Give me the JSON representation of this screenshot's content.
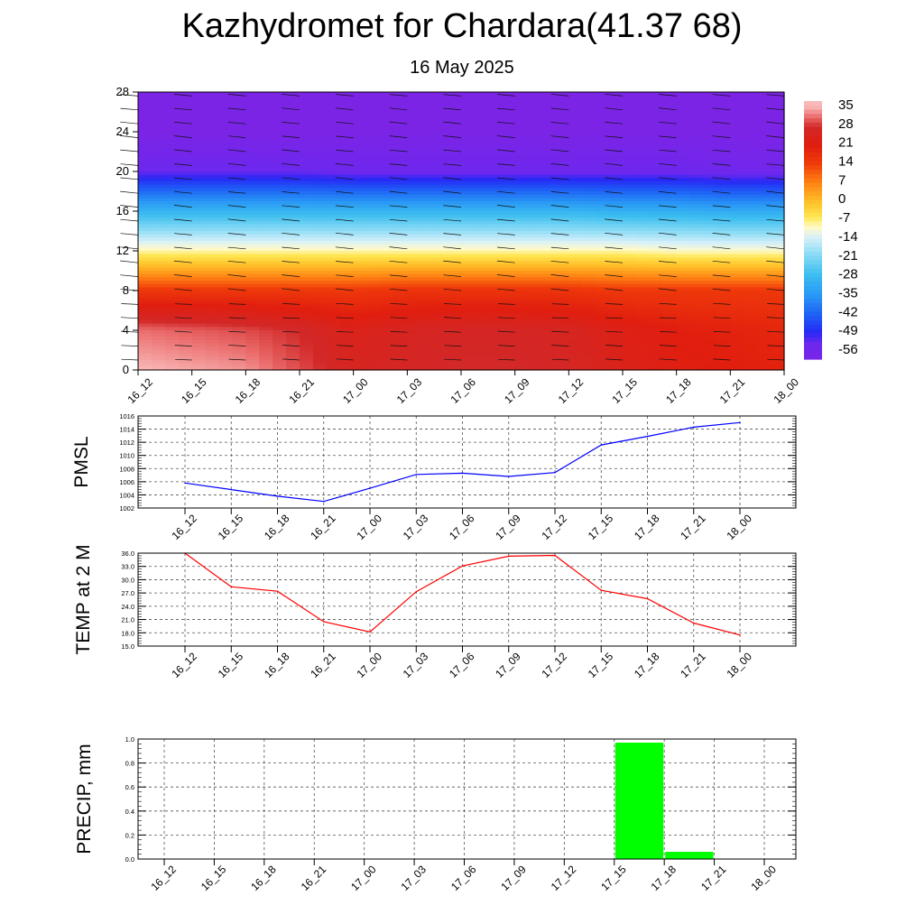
{
  "title": "Kazhydromet for Chardara(41.37 68)",
  "subtitle": "16 May 2025",
  "chart_data": [
    {
      "type": "heatmap",
      "name": "upper-air-temperature",
      "x": [
        "16_12",
        "16_15",
        "16_18",
        "16_21",
        "17_00",
        "17_03",
        "17_06",
        "17_09",
        "17_12",
        "17_15",
        "17_18",
        "17_21",
        "18_00"
      ],
      "yticks": [
        0,
        4,
        8,
        12,
        16,
        20,
        24,
        28
      ],
      "ylim": [
        0,
        28
      ],
      "colorbar_ticks": [
        35,
        28,
        21,
        14,
        7,
        0,
        -7,
        -14,
        -21,
        -28,
        -35,
        -42,
        -49,
        -56
      ],
      "colorbar_range": [
        -60,
        38
      ],
      "z_rows": [
        {
          "y": 0,
          "values": [
            36,
            35,
            34,
            30,
            26,
            27,
            28,
            28,
            27,
            24,
            22,
            21,
            20
          ]
        },
        {
          "y": 4,
          "values": [
            32,
            31,
            30,
            28,
            24,
            26,
            27,
            27,
            26,
            23,
            21,
            20,
            19
          ]
        },
        {
          "y": 8,
          "values": [
            15,
            15,
            15,
            15,
            15,
            16,
            16,
            16,
            16,
            15,
            15,
            15,
            15
          ]
        },
        {
          "y": 12,
          "values": [
            -9,
            -9,
            -9,
            -9,
            -9,
            -9,
            -9,
            -9,
            -9,
            -9,
            -10,
            -10,
            -10
          ]
        },
        {
          "y": 16,
          "values": [
            -30,
            -30,
            -30,
            -30,
            -30,
            -30,
            -30,
            -30,
            -30,
            -31,
            -31,
            -32,
            -32
          ]
        },
        {
          "y": 20,
          "values": [
            -54,
            -54,
            -54,
            -54,
            -55,
            -55,
            -55,
            -55,
            -55,
            -55,
            -55,
            -56,
            -56
          ]
        },
        {
          "y": 24,
          "values": [
            -62,
            -62,
            -62,
            -62,
            -62,
            -62,
            -62,
            -62,
            -62,
            -62,
            -62,
            -62,
            -62
          ]
        },
        {
          "y": 28,
          "values": [
            -62,
            -62,
            -62,
            -62,
            -62,
            -62,
            -62,
            -62,
            -62,
            -62,
            -62,
            -62,
            -62
          ]
        }
      ],
      "wind_barbs": "yes"
    },
    {
      "type": "line",
      "ylabel": "PMSL",
      "x": [
        "16_12",
        "16_15",
        "16_18",
        "16_21",
        "17_00",
        "17_03",
        "17_06",
        "17_09",
        "17_12",
        "17_15",
        "17_18",
        "17_21",
        "18_00"
      ],
      "values": [
        1005.8,
        1004.8,
        1003.8,
        1003.0,
        1005.0,
        1007.1,
        1007.3,
        1006.8,
        1007.4,
        1011.6,
        1012.9,
        1014.3,
        1015.0
      ],
      "ylim": [
        1002,
        1016
      ],
      "yticks": [
        "1002",
        "1004",
        "1006",
        "1008",
        "1010",
        "1012",
        "1014",
        "1016"
      ],
      "color": "#0000ff",
      "grid": true
    },
    {
      "type": "line",
      "ylabel": "TEMP at 2 M",
      "x": [
        "16_12",
        "16_15",
        "16_18",
        "16_21",
        "17_00",
        "17_03",
        "17_06",
        "17_09",
        "17_12",
        "17_15",
        "17_18",
        "17_21",
        "18_00"
      ],
      "values": [
        36.0,
        28.4,
        27.4,
        20.5,
        18.2,
        27.3,
        33.1,
        35.3,
        35.5,
        27.6,
        25.7,
        20.2,
        17.5
      ],
      "ylim": [
        15,
        36
      ],
      "yticks": [
        "15.0",
        "18.0",
        "21.0",
        "24.0",
        "27.0",
        "30.0",
        "33.0",
        "36.0"
      ],
      "color": "#ff0000",
      "grid": true
    },
    {
      "type": "bar",
      "ylabel": "PRECIP, mm",
      "x": [
        "16_12",
        "16_15",
        "16_18",
        "16_21",
        "17_00",
        "17_03",
        "17_06",
        "17_09",
        "17_12",
        "17_15",
        "17_18",
        "17_21",
        "18_00"
      ],
      "values": [
        0,
        0,
        0,
        0,
        0,
        0,
        0,
        0,
        0,
        0,
        0.97,
        0.06,
        0
      ],
      "ylim": [
        0,
        1.0
      ],
      "yticks": [
        "0.0",
        "0.2",
        "0.4",
        "0.6",
        "0.8",
        "1.0"
      ],
      "color": "#00ff00",
      "grid": true
    }
  ]
}
